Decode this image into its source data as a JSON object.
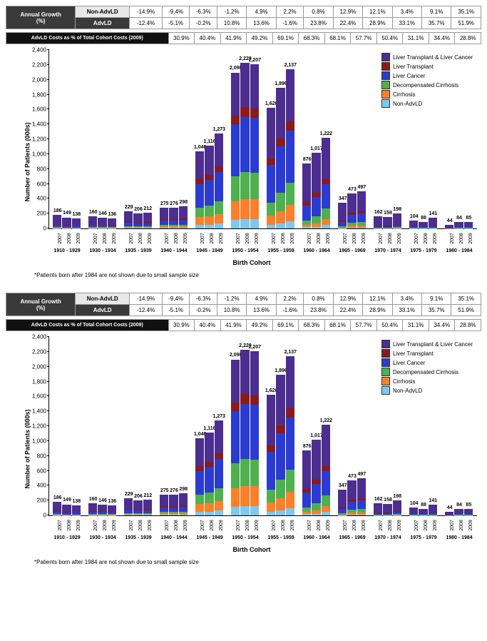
{
  "header": {
    "annual_growth_label": "Annual Growth (%)",
    "row1_label": "Non-AdvLD",
    "row2_label": "AdvLD",
    "costrow_label": "AdvLD Costs as % of Total Cohort Costs (2009)",
    "cohorts": [
      "1910 - 1929",
      "1930 - 1934",
      "1935 - 1939",
      "1940 - 1944",
      "1945 - 1949",
      "1950 - 1954",
      "1955 - 1959",
      "1960 - 1964",
      "1965 - 1969",
      "1970 - 1974",
      "1975 - 1979",
      "1980 - 1984"
    ],
    "row1": [
      "-14.9%",
      "-9.4%",
      "-6.3%",
      "-1.2%",
      "4.9%",
      "2.2%",
      "0.8%",
      "12.9%",
      "12.1%",
      "3.4%",
      "9.1%",
      "35.1%"
    ],
    "row2": [
      "-12.4%",
      "-5.1%",
      "-0.2%",
      "10.8%",
      "13.6%",
      "-1.6%",
      "23.8%",
      "22.4%",
      "28.9%",
      "33.1%",
      "35.7%",
      "51.9%"
    ],
    "costrow": [
      "30.9%",
      "40.4%",
      "41.9%",
      "49.2%",
      "69.1%",
      "68.3%",
      "68.1%",
      "57.7%",
      "50.4%",
      "31.1%",
      "34.4%",
      "28.8%"
    ]
  },
  "chart": {
    "y_label": "Number of Patients (000s)",
    "x_label": "Birth Cohort",
    "y_max": 2400,
    "y_step": 200,
    "years": [
      "2007",
      "2008",
      "2009"
    ],
    "legend": [
      {
        "name": "Liver Transplant & Liver Cancer",
        "color": "#4b2e8f"
      },
      {
        "name": "Liver Transplant",
        "color": "#8b1a1a"
      },
      {
        "name": "Liver Cancer",
        "color": "#2a3bd1"
      },
      {
        "name": "Decompensated Cirrhosis",
        "color": "#4fb04f"
      },
      {
        "name": "Cirrhosis",
        "color": "#ff7f2a"
      },
      {
        "name": "Non-AdvLD",
        "color": "#7ec8ee"
      }
    ],
    "cohorts": [
      {
        "label": "1910 - 1929",
        "bars": [
          {
            "year": "2007",
            "total": 186,
            "segs": [
              130,
              10,
              30,
              8,
              5,
              3
            ]
          },
          {
            "year": "2008",
            "total": 149,
            "segs": [
              104,
              8,
              24,
              6,
              4,
              3
            ]
          },
          {
            "year": "2009",
            "total": 138,
            "segs": [
              97,
              7,
              22,
              6,
              4,
              2
            ]
          }
        ]
      },
      {
        "label": "1930 - 1934",
        "bars": [
          {
            "year": "2007",
            "total": 160,
            "segs": [
              100,
              10,
              32,
              8,
              6,
              4
            ]
          },
          {
            "year": "2008",
            "total": 146,
            "segs": [
              90,
              9,
              30,
              8,
              5,
              4
            ]
          },
          {
            "year": "2009",
            "total": 136,
            "segs": [
              84,
              9,
              28,
              7,
              5,
              3
            ]
          }
        ]
      },
      {
        "label": "1935 - 1939",
        "bars": [
          {
            "year": "2007",
            "total": 229,
            "segs": [
              140,
              15,
              45,
              12,
              10,
              7
            ]
          },
          {
            "year": "2008",
            "total": 206,
            "segs": [
              125,
              14,
              40,
              11,
              9,
              7
            ]
          },
          {
            "year": "2009",
            "total": 212,
            "segs": [
              128,
              14,
              42,
              12,
              9,
              7
            ]
          }
        ]
      },
      {
        "label": "1940 - 1944",
        "bars": [
          {
            "year": "2007",
            "total": 275,
            "segs": [
              150,
              18,
              60,
              22,
              15,
              10
            ]
          },
          {
            "year": "2008",
            "total": 276,
            "segs": [
              150,
              18,
              60,
              22,
              16,
              10
            ]
          },
          {
            "year": "2009",
            "total": 298,
            "segs": [
              160,
              20,
              65,
              25,
              17,
              11
            ]
          }
        ]
      },
      {
        "label": "1945 - 1949",
        "bars": [
          {
            "year": "2007",
            "total": 1040,
            "segs": [
              380,
              60,
              320,
              130,
              100,
              50
            ]
          },
          {
            "year": "2008",
            "total": 1116,
            "segs": [
              400,
              65,
              345,
              145,
              110,
              51
            ]
          },
          {
            "year": "2009",
            "total": 1273,
            "segs": [
              440,
              75,
              395,
              170,
              130,
              63
            ]
          }
        ]
      },
      {
        "label": "1950 - 1954",
        "bars": [
          {
            "year": "2007",
            "total": 2098,
            "segs": [
              580,
              120,
              700,
              330,
              250,
              118
            ]
          },
          {
            "year": "2008",
            "total": 2229,
            "segs": [
              600,
              130,
              745,
              360,
              270,
              124
            ]
          },
          {
            "year": "2009",
            "total": 2207,
            "segs": [
              595,
              128,
              738,
              356,
              267,
              123
            ]
          }
        ]
      },
      {
        "label": "1955 - 1959",
        "bars": [
          {
            "year": "2007",
            "total": 1620,
            "segs": [
              680,
              90,
              500,
              180,
              120,
              50
            ]
          },
          {
            "year": "2008",
            "total": 1896,
            "segs": [
              690,
              105,
              620,
              250,
              160,
              71
            ]
          },
          {
            "year": "2009",
            "total": 2137,
            "segs": [
              700,
              120,
              700,
              300,
              220,
              97
            ]
          }
        ]
      },
      {
        "label": "1960 - 1964",
        "bars": [
          {
            "year": "2007",
            "total": 876,
            "segs": [
              520,
              50,
              200,
              60,
              30,
              16
            ]
          },
          {
            "year": "2008",
            "total": 1017,
            "segs": [
              540,
              58,
              260,
              90,
              45,
              24
            ]
          },
          {
            "year": "2009",
            "total": 1222,
            "segs": [
              555,
              70,
              330,
              140,
              80,
              47
            ]
          }
        ]
      },
      {
        "label": "1965 - 1969",
        "bars": [
          {
            "year": "2007",
            "total": 347,
            "segs": [
              240,
              20,
              55,
              18,
              10,
              4
            ]
          },
          {
            "year": "2008",
            "total": 473,
            "segs": [
              265,
              28,
              100,
              40,
              28,
              12
            ]
          },
          {
            "year": "2009",
            "total": 497,
            "segs": [
              270,
              30,
              110,
              45,
              30,
              12
            ]
          }
        ]
      },
      {
        "label": "1970 - 1974",
        "bars": [
          {
            "year": "2007",
            "total": 162,
            "segs": [
              130,
              8,
              15,
              5,
              3,
              1
            ]
          },
          {
            "year": "2008",
            "total": 158,
            "segs": [
              126,
              8,
              15,
              5,
              3,
              1
            ]
          },
          {
            "year": "2009",
            "total": 198,
            "segs": [
              140,
              12,
              28,
              10,
              6,
              2
            ]
          }
        ]
      },
      {
        "label": "1975 - 1979",
        "bars": [
          {
            "year": "2007",
            "total": 104,
            "segs": [
              80,
              5,
              12,
              4,
              2,
              1
            ]
          },
          {
            "year": "2008",
            "total": 88,
            "segs": [
              68,
              4,
              10,
              3,
              2,
              1
            ]
          },
          {
            "year": "2009",
            "total": 141,
            "segs": [
              100,
              8,
              20,
              8,
              4,
              1
            ]
          }
        ]
      },
      {
        "label": "1980 - 1984",
        "bars": [
          {
            "year": "2007",
            "total": 44,
            "segs": [
              36,
              2,
              4,
              1,
              1,
              0
            ]
          },
          {
            "year": "2008",
            "total": 84,
            "segs": [
              62,
              4,
              12,
              3,
              2,
              1
            ]
          },
          {
            "year": "2009",
            "total": 85,
            "segs": [
              62,
              4,
              12,
              4,
              2,
              1
            ]
          }
        ]
      }
    ]
  },
  "footnote": "*Patients born after 1984 are not shown due to small sample size"
}
